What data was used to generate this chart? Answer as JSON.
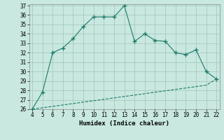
{
  "x": [
    4,
    5,
    6,
    7,
    8,
    9,
    10,
    11,
    12,
    13,
    14,
    15,
    16,
    17,
    18,
    19,
    20,
    21,
    22
  ],
  "y_main": [
    26,
    27.8,
    32,
    32.5,
    33.5,
    34.8,
    35.8,
    35.8,
    35.8,
    37.0,
    33.2,
    34.0,
    33.3,
    33.2,
    32.0,
    31.8,
    32.3,
    30.0,
    29.2
  ],
  "y_line2": [
    26,
    26.15,
    26.3,
    26.45,
    26.6,
    26.75,
    26.9,
    27.05,
    27.2,
    27.35,
    27.5,
    27.65,
    27.8,
    27.95,
    28.1,
    28.25,
    28.4,
    28.55,
    29.2
  ],
  "line_color": "#1e7a68",
  "bg_color": "#c8e8e0",
  "grid_color": "#a8c8c0",
  "xlabel": "Humidex (Indice chaleur)",
  "ylim": [
    26,
    37
  ],
  "xlim": [
    4,
    22
  ],
  "yticks": [
    26,
    27,
    28,
    29,
    30,
    31,
    32,
    33,
    34,
    35,
    36,
    37
  ],
  "xticks": [
    4,
    5,
    6,
    7,
    8,
    9,
    10,
    11,
    12,
    13,
    14,
    15,
    16,
    17,
    18,
    19,
    20,
    21,
    22
  ]
}
